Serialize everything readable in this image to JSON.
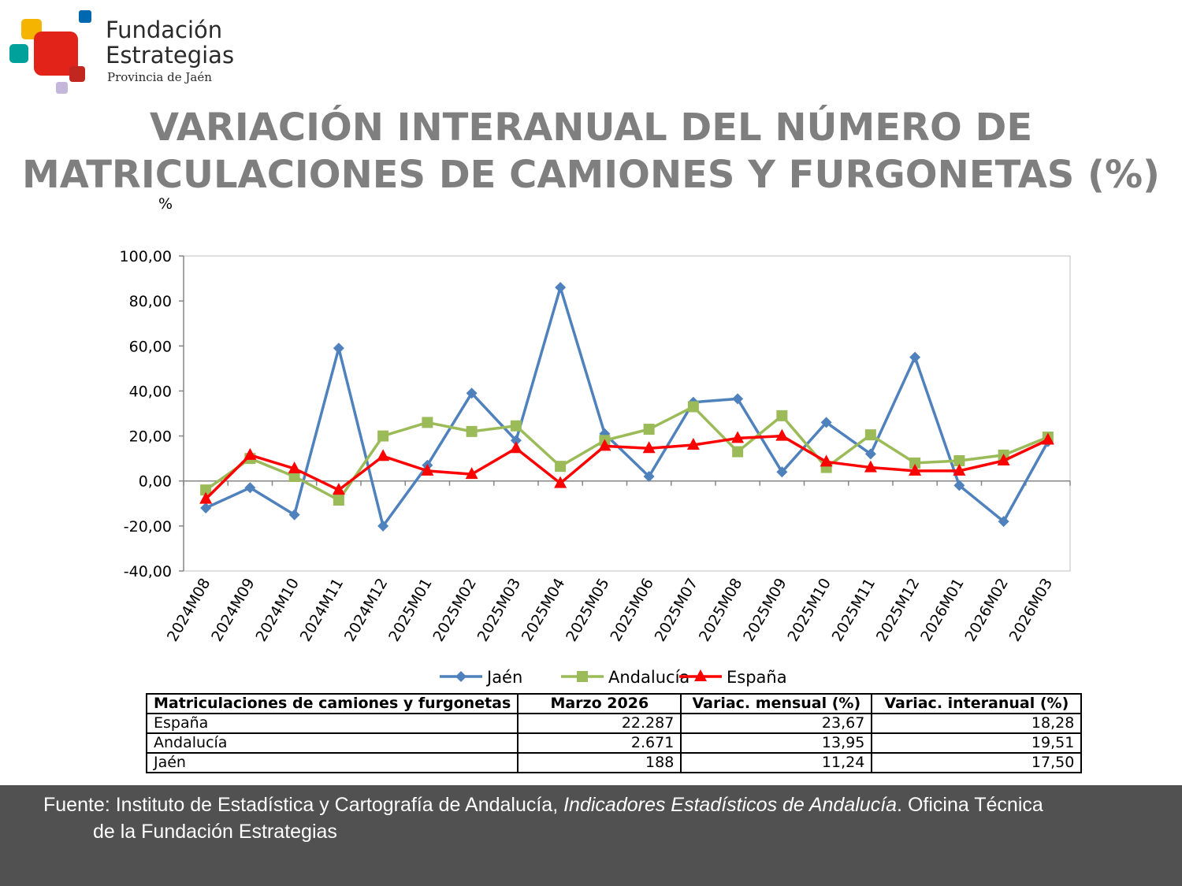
{
  "brand": {
    "name_line1": "Fundación",
    "name_line2": "Estrategias",
    "subtitle": "Provincia de Jaén",
    "colors": [
      "#f5b400",
      "#e2231a",
      "#0067b1",
      "#00a19a",
      "#c5b6db"
    ]
  },
  "title": {
    "line1": "VARIACIÓN INTERANUAL DEL NÚMERO DE",
    "line2": "MATRICULACIONES DE CAMIONES Y FURGONETAS (%)"
  },
  "chart_data": {
    "type": "line",
    "ylabel": "%",
    "ylim": [
      -40,
      100
    ],
    "yticks": [
      100,
      80,
      60,
      40,
      20,
      0,
      -20,
      -40
    ],
    "ytick_labels": [
      "100,00",
      "80,00",
      "60,00",
      "40,00",
      "20,00",
      "0,00",
      "-20,00",
      "-40,00"
    ],
    "grid": false,
    "legend_position": "bottom",
    "categories": [
      "2024M08",
      "2024M09",
      "2024M10",
      "2024M11",
      "2024M12",
      "2025M01",
      "2025M02",
      "2025M03",
      "2025M04",
      "2025M05",
      "2025M06",
      "2025M07",
      "2025M08",
      "2025M09",
      "2025M10",
      "2025M11",
      "2025M12",
      "2026M01",
      "2026M02",
      "2026M03"
    ],
    "series": [
      {
        "name": "Jaén",
        "color": "#4f81bd",
        "marker": "diamond",
        "values": [
          -12,
          -3,
          -15,
          59,
          -20,
          7,
          39,
          18,
          86,
          21,
          2,
          35,
          36.5,
          4,
          26,
          12,
          55,
          -2,
          -18,
          17.5
        ]
      },
      {
        "name": "Andalucía",
        "color": "#9bbb59",
        "marker": "square",
        "values": [
          -4,
          10,
          2,
          -8.5,
          20,
          26,
          22,
          24.5,
          6.5,
          18,
          23,
          33,
          13,
          29,
          6,
          20.5,
          8,
          9,
          11.5,
          19.51
        ]
      },
      {
        "name": "España",
        "color": "#ff0000",
        "marker": "triangle",
        "values": [
          -8,
          11.5,
          5.5,
          -4,
          11,
          4.5,
          3,
          14.5,
          -1,
          15.5,
          14.5,
          16,
          19,
          20,
          8.5,
          6,
          4.5,
          4.5,
          9,
          18.28
        ]
      }
    ]
  },
  "table": {
    "headers": [
      "Matriculaciones de camiones y furgonetas",
      "Marzo 2026",
      "Variac. mensual (%)",
      "Variac. interanual (%)"
    ],
    "rows": [
      [
        "España",
        "22.287",
        "23,67",
        "18,28"
      ],
      [
        "Andalucía",
        "2.671",
        "13,95",
        "19,51"
      ],
      [
        "Jaén",
        "188",
        "11,24",
        "17,50"
      ]
    ]
  },
  "footer": {
    "prefix": "Fuente: Instituto de Estadística y Cartografía de Andalucía, ",
    "italic": "Indicadores Estadísticos de Andalucía",
    "suffix": ". Oficina Técnica",
    "line2": "de la Fundación Estrategias"
  }
}
